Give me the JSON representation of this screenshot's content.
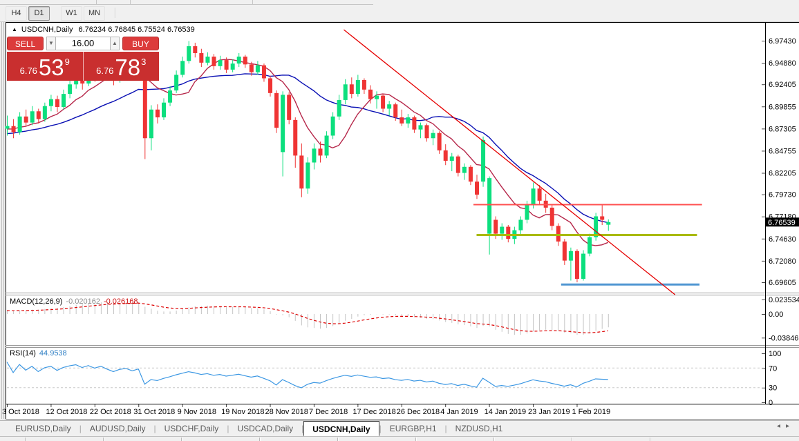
{
  "toolbar": {
    "timeframes": [
      "H4",
      "D1",
      "W1",
      "MN"
    ],
    "active": "D1"
  },
  "chart_header": {
    "marker": "▲",
    "symbol_label": "USDCNH,Daily",
    "ohlc": "6.76234 6.76845 6.75524 6.76539"
  },
  "trade_panel": {
    "sell_label": "SELL",
    "buy_label": "BUY",
    "volume": "16.00",
    "spin_down": "▼",
    "spin_up": "▲",
    "sell_price": {
      "base": "6.76",
      "big": "53",
      "sup": "9"
    },
    "buy_price": {
      "base": "6.76",
      "big": "78",
      "sup": "3"
    }
  },
  "indicators_panel": {
    "macd_label": "MACD(12,26,9)",
    "macd_value": "-0.020162",
    "macd_signal": "-0.026168",
    "rsi_label": "RSI(14)",
    "rsi_value": "44.9538"
  },
  "bottom_tabs": [
    {
      "label": "EURUSD,Daily",
      "active": false
    },
    {
      "label": "AUDUSD,Daily",
      "active": false
    },
    {
      "label": "USDCHF,Daily",
      "active": false
    },
    {
      "label": "USDCAD,Daily",
      "active": false
    },
    {
      "label": "USDCNH,Daily",
      "active": true
    },
    {
      "label": "EURGBP,H1",
      "active": false
    },
    {
      "label": "NZDUSD,H1",
      "active": false
    }
  ],
  "tab_nav": {
    "left": "◂",
    "right": "▸"
  },
  "colors": {
    "up": "#0cdf7e",
    "down": "#ef3434",
    "ma_fast": "#b6274a",
    "ma_slow": "#0a10b4",
    "trendline": "#e60000",
    "hline_red": "#ff5050",
    "hline_olive": "#a9ba00",
    "hline_blue": "#4f96d2",
    "macd_hist": "#c4c4c4",
    "macd_signal": "#dd0000",
    "rsi_line": "#3b97e3",
    "level_dash": "#c8c8c8"
  },
  "chart_data": {
    "type": "candlestick",
    "symbol": "USDCNH",
    "timeframe": "Daily",
    "ohlc_display": {
      "open": "6.76234",
      "high": "6.76845",
      "low": "6.75524",
      "close": "6.76539"
    },
    "y_axis": {
      "tick_labels": [
        "6.97430",
        "6.94880",
        "6.92405",
        "6.89855",
        "6.87305",
        "6.84755",
        "6.82205",
        "6.79730",
        "6.77180",
        "6.74630",
        "6.72080",
        "6.69605"
      ],
      "current_price": "6.76539"
    },
    "x_axis": {
      "labels": [
        "3 Oct 2018",
        "12 Oct 2018",
        "22 Oct 2018",
        "31 Oct 2018",
        "9 Nov 2018",
        "19 Nov 2018",
        "28 Nov 2018",
        "7 Dec 2018",
        "17 Dec 2018",
        "26 Dec 2018",
        "4 Jan 2019",
        "14 Jan 2019",
        "23 Jan 2019",
        "1 Feb 2019"
      ],
      "bars_per_label": 7
    },
    "warmup_closes": [
      6.845,
      6.846,
      6.848,
      6.847,
      6.85,
      6.852,
      6.851,
      6.854,
      6.856,
      6.855,
      6.858,
      6.86,
      6.859,
      6.862,
      6.861,
      6.863,
      6.865,
      6.864,
      6.866,
      6.868,
      6.867,
      6.869,
      6.87,
      6.869,
      6.871,
      6.872,
      6.871,
      6.873,
      6.874,
      6.875
    ],
    "candles": [
      [
        6.873,
        6.888,
        6.865,
        6.876
      ],
      [
        6.876,
        6.884,
        6.862,
        6.869
      ],
      [
        6.869,
        6.892,
        6.866,
        6.887
      ],
      [
        6.887,
        6.895,
        6.876,
        6.88
      ],
      [
        6.88,
        6.899,
        6.877,
        6.893
      ],
      [
        6.893,
        6.896,
        6.879,
        6.884
      ],
      [
        6.884,
        6.903,
        6.881,
        6.899
      ],
      [
        6.899,
        6.912,
        6.893,
        6.907
      ],
      [
        6.907,
        6.911,
        6.892,
        6.898
      ],
      [
        6.898,
        6.918,
        6.895,
        6.913
      ],
      [
        6.913,
        6.929,
        6.908,
        6.924
      ],
      [
        6.924,
        6.937,
        6.919,
        6.932
      ],
      [
        6.932,
        6.936,
        6.918,
        6.925
      ],
      [
        6.925,
        6.944,
        6.922,
        6.939
      ],
      [
        6.939,
        6.943,
        6.927,
        6.932
      ],
      [
        6.932,
        6.95,
        6.929,
        6.946
      ],
      [
        6.946,
        6.949,
        6.932,
        6.937
      ],
      [
        6.937,
        6.942,
        6.923,
        6.929
      ],
      [
        6.929,
        6.948,
        6.926,
        6.943
      ],
      [
        6.943,
        6.956,
        6.938,
        6.95
      ],
      [
        6.95,
        6.954,
        6.937,
        6.942
      ],
      [
        6.942,
        6.958,
        6.939,
        6.954
      ],
      [
        6.954,
        6.957,
        6.838,
        6.862
      ],
      [
        6.862,
        6.9,
        6.848,
        6.895
      ],
      [
        6.895,
        6.901,
        6.879,
        6.886
      ],
      [
        6.886,
        6.908,
        6.883,
        6.903
      ],
      [
        6.903,
        6.922,
        6.899,
        6.917
      ],
      [
        6.917,
        6.94,
        6.914,
        6.935
      ],
      [
        6.935,
        6.956,
        6.932,
        6.951
      ],
      [
        6.951,
        6.974,
        6.948,
        6.968
      ],
      [
        6.968,
        6.972,
        6.955,
        6.96
      ],
      [
        6.96,
        6.965,
        6.944,
        6.949
      ],
      [
        6.949,
        6.961,
        6.946,
        6.956
      ],
      [
        6.956,
        6.959,
        6.941,
        6.945
      ],
      [
        6.945,
        6.957,
        6.941,
        6.952
      ],
      [
        6.952,
        6.955,
        6.937,
        6.941
      ],
      [
        6.941,
        6.953,
        6.938,
        6.948
      ],
      [
        6.948,
        6.96,
        6.944,
        6.956
      ],
      [
        6.956,
        6.958,
        6.943,
        6.947
      ],
      [
        6.947,
        6.95,
        6.934,
        6.938
      ],
      [
        6.938,
        6.951,
        6.935,
        6.946
      ],
      [
        6.946,
        6.948,
        6.927,
        6.931
      ],
      [
        6.931,
        6.934,
        6.91,
        6.914
      ],
      [
        6.914,
        6.917,
        6.868,
        6.874
      ],
      [
        6.846,
        6.916,
        6.818,
        6.912
      ],
      [
        6.912,
        6.915,
        6.878,
        6.883
      ],
      [
        6.883,
        6.886,
        6.828,
        6.842
      ],
      [
        6.842,
        6.856,
        6.794,
        6.804
      ],
      [
        6.804,
        6.84,
        6.798,
        6.834
      ],
      [
        6.834,
        6.856,
        6.826,
        6.85
      ],
      [
        6.85,
        6.858,
        6.834,
        6.842
      ],
      [
        6.842,
        6.87,
        6.839,
        6.865
      ],
      [
        6.865,
        6.892,
        6.861,
        6.887
      ],
      [
        6.887,
        6.912,
        6.883,
        6.906
      ],
      [
        6.906,
        6.93,
        6.901,
        6.924
      ],
      [
        6.924,
        6.932,
        6.908,
        6.913
      ],
      [
        6.913,
        6.935,
        6.91,
        6.929
      ],
      [
        6.929,
        6.931,
        6.913,
        6.918
      ],
      [
        6.918,
        6.923,
        6.902,
        6.907
      ],
      [
        6.907,
        6.916,
        6.896,
        6.911
      ],
      [
        6.911,
        6.913,
        6.892,
        6.896
      ],
      [
        6.896,
        6.905,
        6.888,
        6.901
      ],
      [
        6.901,
        6.903,
        6.882,
        6.886
      ],
      [
        6.886,
        6.895,
        6.876,
        6.879
      ],
      [
        6.879,
        6.89,
        6.874,
        6.886
      ],
      [
        6.886,
        6.888,
        6.868,
        6.872
      ],
      [
        6.872,
        6.88,
        6.862,
        6.877
      ],
      [
        6.877,
        6.879,
        6.858,
        6.862
      ],
      [
        6.862,
        6.872,
        6.854,
        6.868
      ],
      [
        6.868,
        6.87,
        6.844,
        6.848
      ],
      [
        6.848,
        6.855,
        6.831,
        6.836
      ],
      [
        6.836,
        6.845,
        6.824,
        6.841
      ],
      [
        6.841,
        6.843,
        6.818,
        6.822
      ],
      [
        6.822,
        6.833,
        6.814,
        6.829
      ],
      [
        6.829,
        6.831,
        6.808,
        6.812
      ],
      [
        6.812,
        6.82,
        6.792,
        6.797
      ],
      [
        6.812,
        6.864,
        6.806,
        6.86
      ],
      [
        6.752,
        6.818,
        6.728,
        6.816
      ],
      [
        6.768,
        6.772,
        6.746,
        6.752
      ],
      [
        6.752,
        6.764,
        6.745,
        6.76
      ],
      [
        6.76,
        6.762,
        6.742,
        6.746
      ],
      [
        6.746,
        6.76,
        6.74,
        6.756
      ],
      [
        6.756,
        6.772,
        6.751,
        6.768
      ],
      [
        6.768,
        6.79,
        6.764,
        6.786
      ],
      [
        6.786,
        6.811,
        6.781,
        6.804
      ],
      [
        6.804,
        6.808,
        6.786,
        6.79
      ],
      [
        6.79,
        6.798,
        6.776,
        6.782
      ],
      [
        6.782,
        6.786,
        6.756,
        6.761
      ],
      [
        6.761,
        6.764,
        6.738,
        6.743
      ],
      [
        6.743,
        6.746,
        6.716,
        6.721
      ],
      [
        6.721,
        6.736,
        6.698,
        6.732
      ],
      [
        6.732,
        6.734,
        6.696,
        6.7
      ],
      [
        6.7,
        6.733,
        6.698,
        6.729
      ],
      [
        6.729,
        6.752,
        6.726,
        6.748
      ],
      [
        6.748,
        6.776,
        6.744,
        6.772
      ],
      [
        6.772,
        6.785,
        6.762,
        6.768
      ],
      [
        6.76234,
        6.76845,
        6.75524,
        6.76539
      ]
    ],
    "overlays": {
      "ma_fast_period": 8,
      "ma_slow_period": 21
    },
    "objects": {
      "trendline": {
        "bar1": 53.8,
        "price1": 6.987,
        "bar2": 106.7,
        "price2": 6.6817
      },
      "hlines": [
        {
          "price": 6.7855,
          "bar1": 74.5,
          "bar2": 111.0,
          "colorKey": "hline_red",
          "width": 2
        },
        {
          "price": 6.7505,
          "bar1": 75.0,
          "bar2": 110.2,
          "colorKey": "hline_olive",
          "width": 3
        },
        {
          "price": 6.6935,
          "bar1": 88.5,
          "bar2": 110.6,
          "colorKey": "hline_blue",
          "width": 3
        }
      ]
    },
    "indicators": {
      "macd": {
        "fast": 12,
        "slow": 26,
        "signal": 9,
        "value": -0.020162,
        "signal_value": -0.026168,
        "axis_labels": [
          "0.023534",
          "0.00",
          "-0.038466"
        ],
        "axis_values": [
          0.023534,
          0,
          -0.038466
        ]
      },
      "rsi": {
        "period": 14,
        "value": 44.9538,
        "levels": [
          70,
          30
        ],
        "axis_labels": [
          "100",
          "70",
          "30",
          "0"
        ],
        "axis_values": [
          100,
          70,
          30,
          0
        ]
      }
    }
  }
}
